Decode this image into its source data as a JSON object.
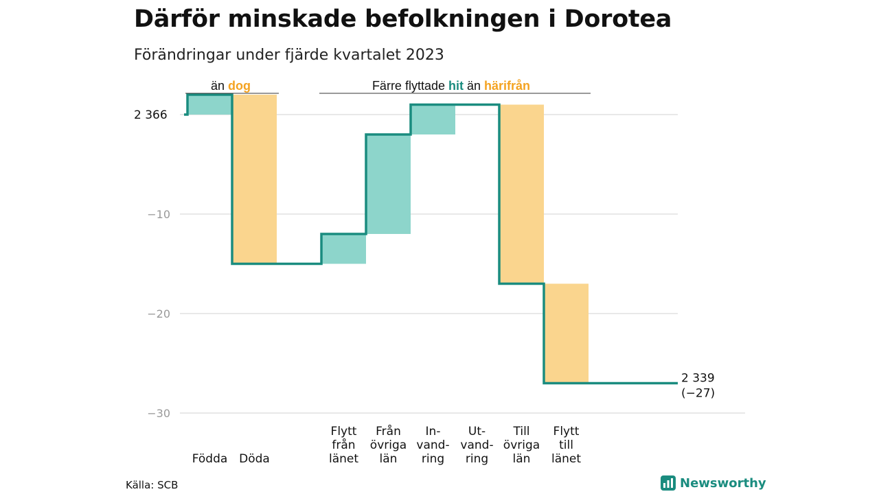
{
  "title": "Därför minskade befolkningen i Dorotea",
  "subtitle": "Förändringar under fjärde kvartalet 2023",
  "source": "Källa: SCB",
  "logo_text": "Newsworthy",
  "colors": {
    "increase": "#8dd5cb",
    "decrease": "#fad58e",
    "line": "#1a8c7f",
    "orange": "#f4a321",
    "teal": "#1a8c7f",
    "grid": "#e0e0e0"
  },
  "annotations": {
    "natural": {
      "prefix": "än",
      "word": "dog"
    },
    "migration": {
      "prefix": "Färre flyttade",
      "word_in": "hit",
      "middle": "än",
      "word_out": "härifrån"
    }
  },
  "chart_data": {
    "type": "waterfall",
    "start_label": "2 366",
    "end_label": "2 339",
    "end_change": "(−27)",
    "baseline": 2366,
    "ylim": [
      -30,
      2
    ],
    "yticks": [
      -10,
      -20,
      -30
    ],
    "ytick_labels": [
      "−10",
      "−20",
      "−30"
    ],
    "grid": true,
    "steps": [
      {
        "label": [
          "Födda"
        ],
        "delta": 2
      },
      {
        "label": [
          "Döda"
        ],
        "delta": -17
      },
      {
        "label": [
          "Flytt",
          "från",
          "länet"
        ],
        "delta": 3
      },
      {
        "label": [
          "Från",
          "övriga",
          "län"
        ],
        "delta": 10
      },
      {
        "label": [
          "In-",
          "vand-",
          "ring"
        ],
        "delta": 3
      },
      {
        "label": [
          "Ut-",
          "vand-",
          "ring"
        ],
        "delta": 0
      },
      {
        "label": [
          "Till",
          "övriga",
          "län"
        ],
        "delta": -18
      },
      {
        "label": [
          "Flytt",
          "till",
          "länet"
        ],
        "delta": -10
      }
    ]
  }
}
